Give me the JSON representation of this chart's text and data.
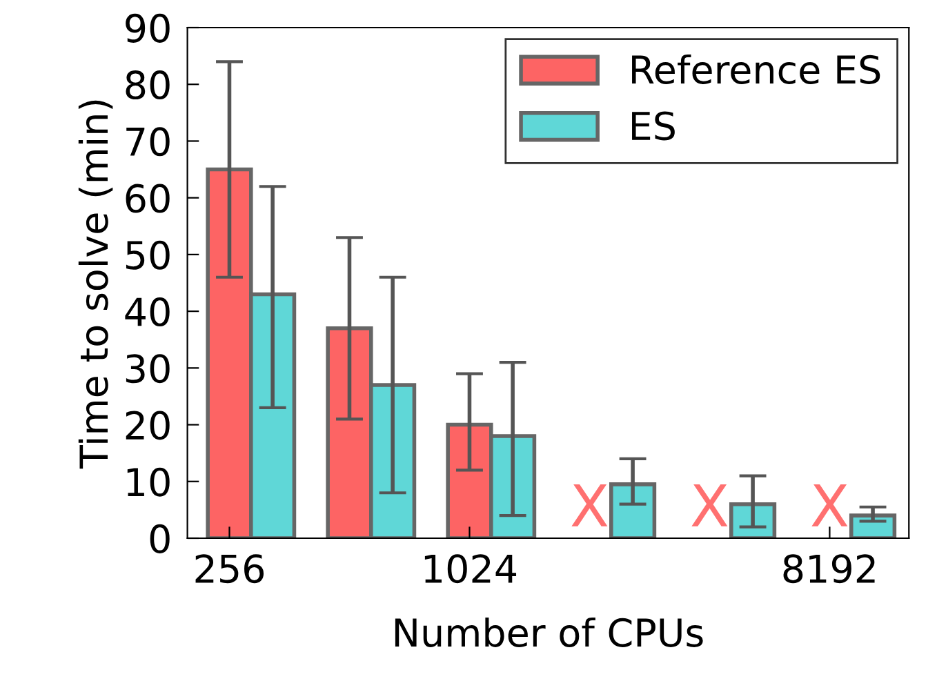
{
  "chart_data": {
    "type": "bar",
    "xlabel": "Number of CPUs",
    "ylabel": "Time to solve (min)",
    "categories": [
      "256",
      null,
      "1024",
      null,
      null,
      "8192"
    ],
    "series": [
      {
        "name": "Reference ES",
        "color": "#fd6464",
        "values": [
          65,
          37,
          20,
          null,
          null,
          null
        ],
        "errors": [
          [
            46,
            84
          ],
          [
            21,
            53
          ],
          [
            12,
            29
          ],
          null,
          null,
          null
        ]
      },
      {
        "name": "ES",
        "color": "#5fd7d7",
        "values": [
          43,
          27,
          18,
          9.5,
          6,
          4
        ],
        "errors": [
          [
            23,
            62
          ],
          [
            8,
            46
          ],
          [
            4,
            31
          ],
          [
            6,
            14
          ],
          [
            2,
            11
          ],
          [
            3,
            5.5
          ]
        ]
      }
    ],
    "annotations": [
      "X",
      "X",
      "X"
    ],
    "ylim": [
      0,
      90
    ],
    "yticks": [
      0,
      10,
      20,
      30,
      40,
      50,
      60,
      70,
      80,
      90
    ],
    "grid": false,
    "legend": "top right"
  }
}
